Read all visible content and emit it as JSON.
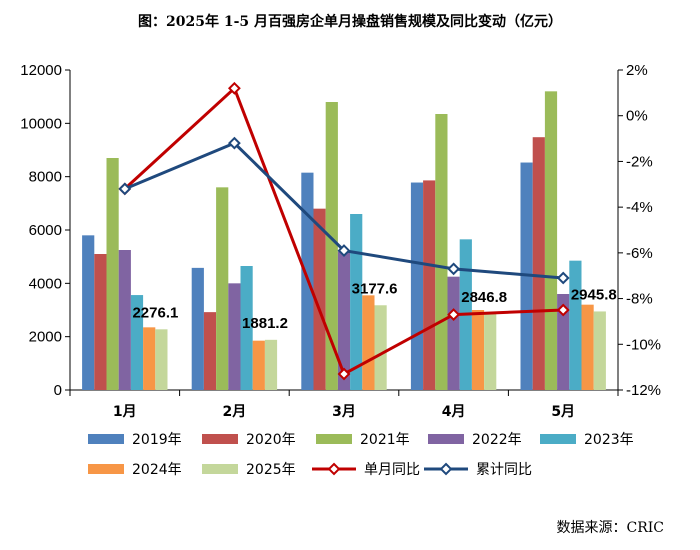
{
  "chart_data": {
    "type": "bar",
    "title": "图：2025年 1-5 月百强房企单月操盘销售规模及同比变动（亿元）",
    "categories": [
      "1月",
      "2月",
      "3月",
      "4月",
      "5月"
    ],
    "series": [
      {
        "name": "2019年",
        "color": "#4f81bd",
        "values": [
          5800,
          4580,
          8150,
          7780,
          8530
        ]
      },
      {
        "name": "2020年",
        "color": "#c0504d",
        "values": [
          5100,
          2920,
          6800,
          7860,
          9480
        ]
      },
      {
        "name": "2021年",
        "color": "#9bbb59",
        "values": [
          8700,
          7600,
          10800,
          10350,
          11200
        ]
      },
      {
        "name": "2022年",
        "color": "#8064a2",
        "values": [
          5250,
          4000,
          5200,
          4250,
          3600
        ]
      },
      {
        "name": "2023年",
        "color": "#4bacc6",
        "values": [
          3560,
          4650,
          6600,
          5650,
          4850
        ]
      },
      {
        "name": "2024年",
        "color": "#f79646",
        "values": [
          2350,
          1850,
          3550,
          3000,
          3200
        ]
      },
      {
        "name": "2025年",
        "color": "#c4d79b",
        "values": [
          2276.1,
          1881.2,
          3177.6,
          2846.8,
          2945.8
        ]
      }
    ],
    "lines": [
      {
        "name": "单月同比",
        "color": "#c00000",
        "values": [
          -3.2,
          1.2,
          -11.3,
          -8.7,
          -8.5
        ]
      },
      {
        "name": "累计同比",
        "color": "#1f497d",
        "values": [
          -3.2,
          -1.2,
          -5.9,
          -6.7,
          -7.1
        ]
      }
    ],
    "data_labels": [
      "2276.1",
      "1881.2",
      "3177.6",
      "2846.8",
      "2945.8"
    ],
    "ylim_left": [
      0,
      12000
    ],
    "yticks_left": [
      "0",
      "2000",
      "4000",
      "6000",
      "8000",
      "10000",
      "12000"
    ],
    "ylim_right": [
      -12,
      2
    ],
    "yticks_right": [
      "2%",
      "0%",
      "-2%",
      "-4%",
      "-6%",
      "-8%",
      "-10%",
      "-12%"
    ],
    "legend_position": "bottom"
  },
  "source": "数据来源：CRIC"
}
